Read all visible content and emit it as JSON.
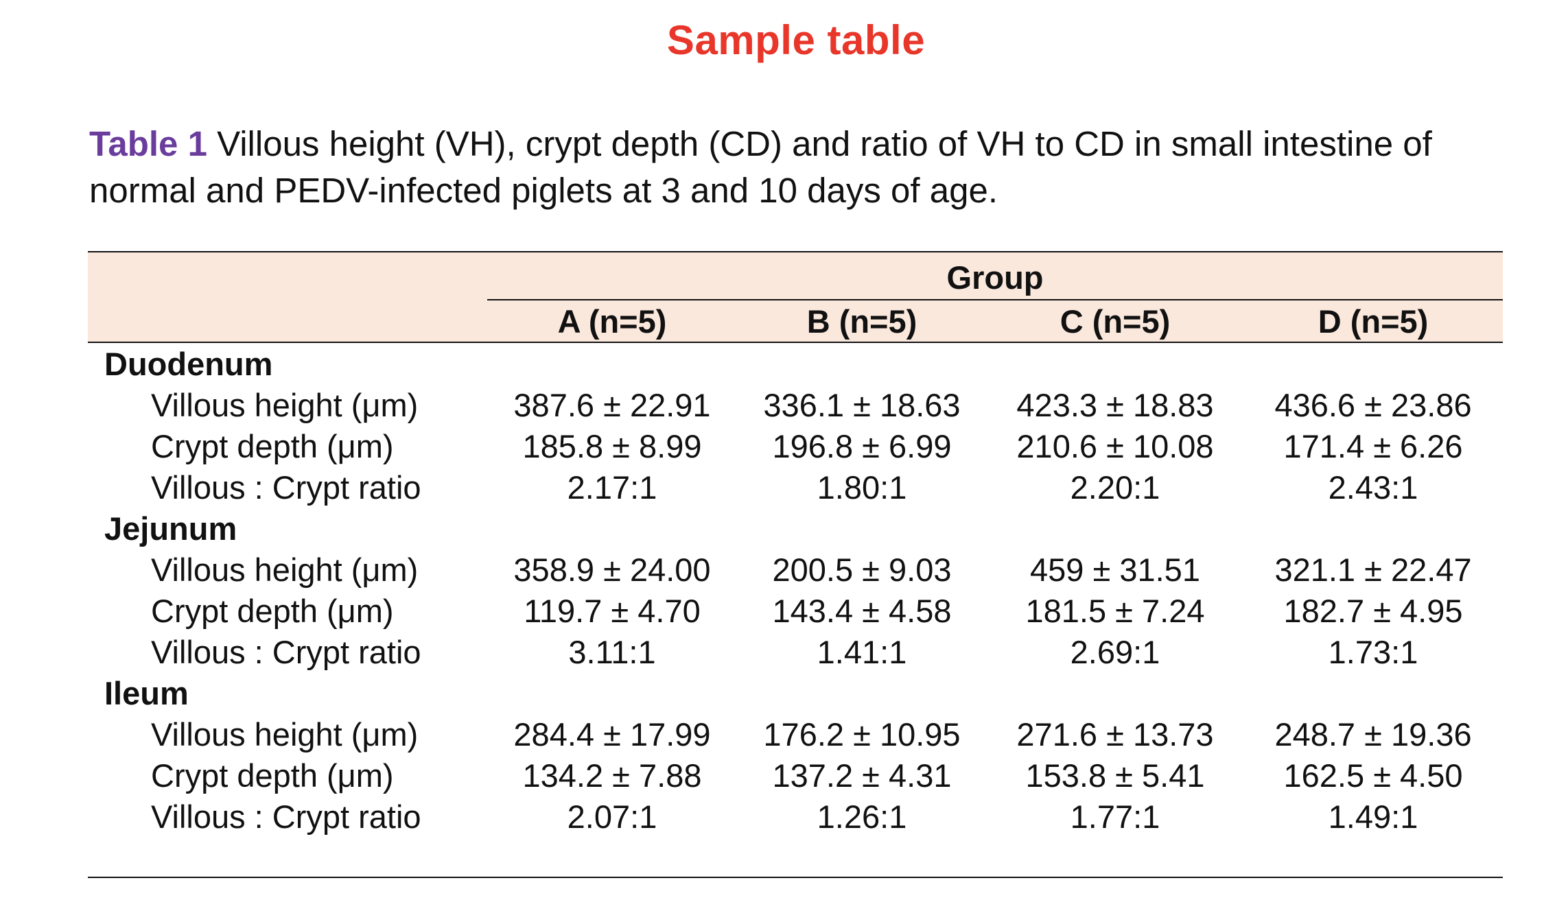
{
  "heading": "Sample table",
  "caption": {
    "label": "Table 1",
    "text": " Villous height (VH), crypt depth (CD) and ratio of VH to CD in small intestine of normal and PEDV-infected piglets at 3 and 10 days of age."
  },
  "table": {
    "group_header": "Group",
    "columns": [
      "A (n=5)",
      "B (n=5)",
      "C (n=5)",
      "D (n=5)"
    ],
    "sections": [
      {
        "name": "Duodenum",
        "rows": [
          {
            "label": "Villous height (μm)",
            "values": [
              "387.6 ± 22.91",
              "336.1 ± 18.63",
              "423.3 ± 18.83",
              "436.6 ± 23.86"
            ]
          },
          {
            "label": "Crypt depth (μm)",
            "values": [
              "185.8 ± 8.99",
              "196.8 ± 6.99",
              "210.6 ± 10.08",
              "171.4 ± 6.26"
            ]
          },
          {
            "label": "Villous : Crypt ratio",
            "values": [
              "2.17:1",
              "1.80:1",
              "2.20:1",
              "2.43:1"
            ]
          }
        ]
      },
      {
        "name": "Jejunum",
        "rows": [
          {
            "label": "Villous height (μm)",
            "values": [
              "358.9 ± 24.00",
              "200.5 ± 9.03",
              "459 ± 31.51",
              "321.1 ± 22.47"
            ]
          },
          {
            "label": "Crypt depth (μm)",
            "values": [
              "119.7 ± 4.70",
              "143.4 ± 4.58",
              "181.5 ± 7.24",
              "182.7 ± 4.95"
            ]
          },
          {
            "label": "Villous : Crypt ratio",
            "values": [
              "3.11:1",
              "1.41:1",
              "2.69:1",
              "1.73:1"
            ]
          }
        ]
      },
      {
        "name": "Ileum",
        "rows": [
          {
            "label": "Villous height (μm)",
            "values": [
              "284.4 ± 17.99",
              "176.2 ± 10.95",
              "271.6 ± 13.73",
              "248.7 ± 19.36"
            ]
          },
          {
            "label": "Crypt depth (μm)",
            "values": [
              "134.2 ± 7.88",
              "137.2 ± 4.31",
              "153.8 ± 5.41",
              "162.5 ± 4.50"
            ]
          },
          {
            "label": "Villous : Crypt ratio",
            "values": [
              "2.07:1",
              "1.26:1",
              "1.77:1",
              "1.49:1"
            ]
          }
        ]
      }
    ]
  },
  "colors": {
    "heading": "#e8372a",
    "caption_label": "#6a3c9c",
    "header_fill": "#fbe8dd"
  }
}
